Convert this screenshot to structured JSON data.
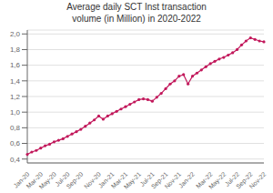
{
  "chart_data": {
    "type": "line",
    "title": "Average daily SCT Inst transaction\nvolume (in Million) in 2020-2022",
    "categories": [
      "Jan-20",
      null,
      null,
      "Mar-20",
      null,
      null,
      "May-20",
      null,
      null,
      "Jul-20",
      null,
      null,
      "Sep-20",
      null,
      null,
      null,
      "Nov-20",
      null,
      null,
      "Jan-21",
      null,
      null,
      "Mar-21",
      null,
      null,
      "May-21",
      null,
      null,
      "Jul-21",
      null,
      null,
      "Sep-21",
      null,
      null,
      "Nov-21",
      null,
      null,
      "Jan-22",
      null,
      null,
      null,
      "Mar-22",
      null,
      null,
      "May-22",
      null,
      null,
      "Jul-22",
      null,
      null,
      "Sep-22",
      null,
      null,
      "Nov-22"
    ],
    "values": [
      0.46,
      0.49,
      0.51,
      0.54,
      0.57,
      0.59,
      0.62,
      0.64,
      0.66,
      0.69,
      0.72,
      0.75,
      0.78,
      0.82,
      0.86,
      0.9,
      0.95,
      0.91,
      0.95,
      0.98,
      1.01,
      1.04,
      1.07,
      1.1,
      1.13,
      1.16,
      1.17,
      1.16,
      1.14,
      1.19,
      1.24,
      1.3,
      1.36,
      1.4,
      1.46,
      1.48,
      1.36,
      1.46,
      1.5,
      1.54,
      1.58,
      1.62,
      1.65,
      1.68,
      1.7,
      1.73,
      1.76,
      1.8,
      1.86,
      1.91,
      1.95,
      1.93,
      1.91,
      1.9
    ],
    "color": "#c2185b",
    "marker": "circle",
    "ylim": [
      0.35,
      2.05
    ],
    "yticks": [
      {
        "value": 0.4,
        "label": "0,4"
      },
      {
        "value": 0.6,
        "label": "0,6"
      },
      {
        "value": 0.8,
        "label": "0,8"
      },
      {
        "value": 1.0,
        "label": "1,0"
      },
      {
        "value": 1.2,
        "label": "1,2"
      },
      {
        "value": 1.4,
        "label": "1,4"
      },
      {
        "value": 1.6,
        "label": "1,6"
      },
      {
        "value": 1.8,
        "label": "1,8"
      },
      {
        "value": 2.0,
        "label": "2,0"
      }
    ],
    "grid": true
  }
}
